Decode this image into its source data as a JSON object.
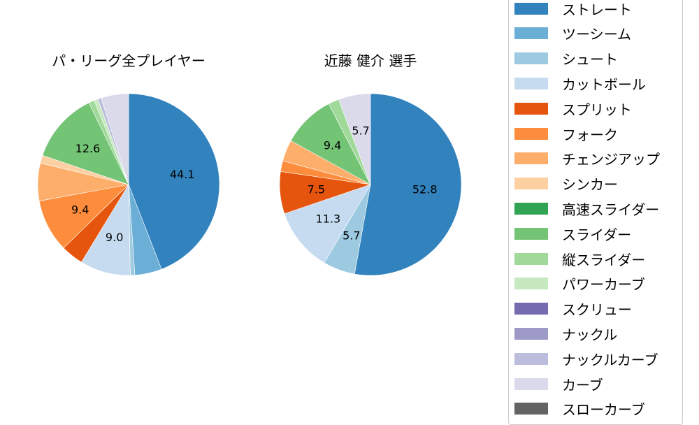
{
  "chart_data": [
    {
      "type": "pie",
      "title": "パ・リーグ全プレイヤー",
      "start_angle": "12 o'clock, clockwise",
      "categories": [
        "ストレート",
        "ツーシーム",
        "シュート",
        "カットボール",
        "スプリット",
        "フォーク",
        "チェンジアップ",
        "シンカー",
        "スライダー",
        "縦スライダー",
        "パワーカーブ",
        "ナックルカーブ",
        "カーブ"
      ],
      "values": [
        44.1,
        4.8,
        0.8,
        9.0,
        4.0,
        9.4,
        6.7,
        1.4,
        12.6,
        1.0,
        0.7,
        0.6,
        4.9
      ],
      "labels_shown": {
        "ストレート": "44.1",
        "カットボール": "9.0",
        "フォーク": "9.4",
        "スライダー": "12.6"
      }
    },
    {
      "type": "pie",
      "title": "近藤 健介  選手",
      "start_angle": "12 o'clock, clockwise",
      "categories": [
        "ストレート",
        "シュート",
        "カットボール",
        "スプリット",
        "フォーク",
        "チェンジアップ",
        "スライダー",
        "縦スライダー",
        "カーブ"
      ],
      "values": [
        52.8,
        5.7,
        11.3,
        7.5,
        1.9,
        3.8,
        9.4,
        1.9,
        5.7
      ],
      "labels_shown": {
        "ストレート": "52.8",
        "シュート": "5.7",
        "カットボール": "11.3",
        "スプリット": "7.5",
        "スライダー": "9.4",
        "カーブ": "5.7"
      }
    }
  ],
  "titles": {
    "league": "パ・リーグ全プレイヤー",
    "player": "近藤 健介  選手"
  },
  "legend": {
    "position": "right",
    "items": [
      {
        "label": "ストレート",
        "color": "#3182bd"
      },
      {
        "label": "ツーシーム",
        "color": "#6baed6"
      },
      {
        "label": "シュート",
        "color": "#9ecae1"
      },
      {
        "label": "カットボール",
        "color": "#c6dbef"
      },
      {
        "label": "スプリット",
        "color": "#e6550d"
      },
      {
        "label": "フォーク",
        "color": "#fd8d3c"
      },
      {
        "label": "チェンジアップ",
        "color": "#fdae6b"
      },
      {
        "label": "シンカー",
        "color": "#fdd0a2"
      },
      {
        "label": "高速スライダー",
        "color": "#31a354"
      },
      {
        "label": "スライダー",
        "color": "#74c476"
      },
      {
        "label": "縦スライダー",
        "color": "#a1d99b"
      },
      {
        "label": "パワーカーブ",
        "color": "#c7e9c0"
      },
      {
        "label": "スクリュー",
        "color": "#756bb1"
      },
      {
        "label": "ナックル",
        "color": "#9e9ac8"
      },
      {
        "label": "ナックルカーブ",
        "color": "#bcbddc"
      },
      {
        "label": "カーブ",
        "color": "#dadaeb"
      },
      {
        "label": "スローカーブ",
        "color": "#636363"
      }
    ]
  }
}
